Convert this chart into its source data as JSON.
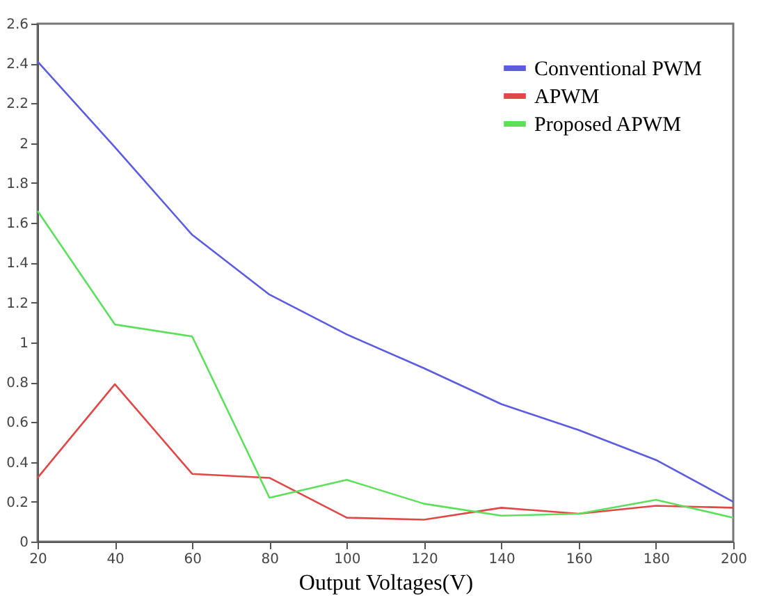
{
  "chart_data": {
    "type": "line",
    "xlabel": "Output Voltages(V)",
    "x": [
      20,
      40,
      60,
      80,
      100,
      120,
      140,
      160,
      180,
      200
    ],
    "series": [
      {
        "name": "Conventional PWM",
        "color": "#5c5ce0",
        "values": [
          2.41,
          1.98,
          1.54,
          1.24,
          1.04,
          0.87,
          0.69,
          0.56,
          0.41,
          0.2
        ]
      },
      {
        "name": "APWM",
        "color": "#e04848",
        "values": [
          0.32,
          0.79,
          0.34,
          0.32,
          0.12,
          0.11,
          0.17,
          0.14,
          0.18,
          0.17
        ]
      },
      {
        "name": "Proposed APWM",
        "color": "#5ce05c",
        "values": [
          1.66,
          1.09,
          1.03,
          0.22,
          0.31,
          0.19,
          0.13,
          0.14,
          0.21,
          0.12
        ]
      }
    ],
    "xlim": [
      20,
      200
    ],
    "xticks": [
      20,
      40,
      60,
      80,
      100,
      120,
      140,
      160,
      180,
      200
    ],
    "ylim": [
      0,
      2.6
    ],
    "yticks": [
      0,
      0.2,
      0.4,
      0.6,
      0.8,
      1,
      1.2,
      1.4,
      1.6,
      1.8,
      2,
      2.2,
      2.4,
      2.6
    ],
    "grid": false,
    "legend": "top right",
    "marker": "none",
    "line_style": "solid"
  }
}
